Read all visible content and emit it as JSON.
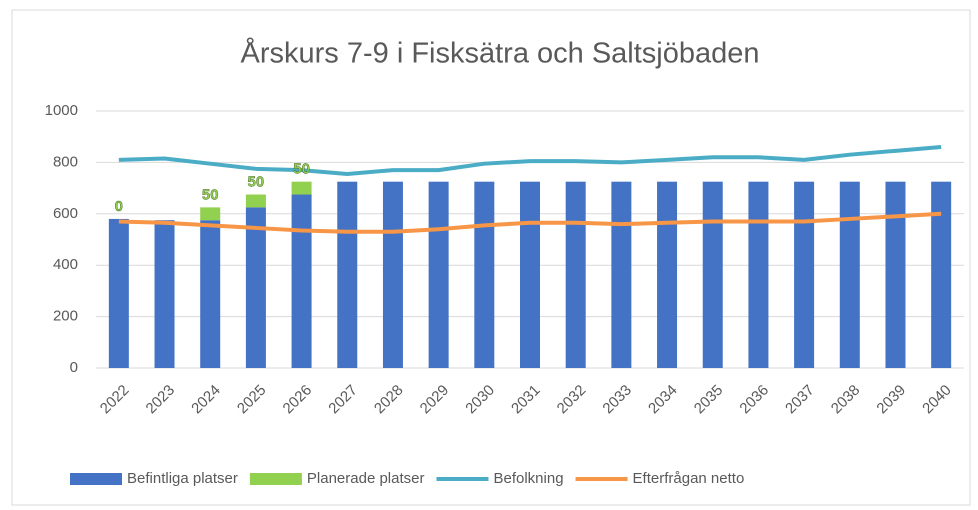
{
  "chart_data": {
    "type": "bar_line",
    "title": "Årskurs 7-9 i Fisksätra och Saltsjöbaden",
    "categories": [
      "2022",
      "2023",
      "2024",
      "2025",
      "2026",
      "2027",
      "2028",
      "2029",
      "2030",
      "2031",
      "2032",
      "2033",
      "2034",
      "2035",
      "2036",
      "2037",
      "2038",
      "2039",
      "2040"
    ],
    "series": [
      {
        "name": "Befintliga platser",
        "type": "bar",
        "color": "#4472c4",
        "values": [
          580,
          575,
          575,
          625,
          675,
          725,
          725,
          725,
          725,
          725,
          725,
          725,
          725,
          725,
          725,
          725,
          725,
          725,
          725
        ]
      },
      {
        "name": "Planerade platser",
        "type": "bar",
        "color": "#92d050",
        "values": [
          0,
          null,
          50,
          50,
          50,
          null,
          null,
          null,
          null,
          null,
          null,
          null,
          null,
          null,
          null,
          null,
          null,
          null,
          null
        ]
      },
      {
        "name": "Befolkning",
        "type": "line",
        "color": "#4bacc6",
        "values": [
          810,
          815,
          795,
          775,
          770,
          755,
          770,
          770,
          795,
          805,
          805,
          800,
          810,
          820,
          820,
          810,
          830,
          845,
          860
        ]
      },
      {
        "name": "Efterfrågan netto",
        "type": "line",
        "color": "#f79646",
        "values": [
          570,
          565,
          555,
          545,
          535,
          530,
          530,
          540,
          555,
          565,
          565,
          560,
          565,
          570,
          570,
          570,
          580,
          590,
          600
        ]
      }
    ],
    "stacked": true,
    "ylim": [
      0,
      1000
    ],
    "yticks": [
      0,
      200,
      400,
      600,
      800,
      1000
    ],
    "grid": true,
    "legend": "bottom"
  }
}
